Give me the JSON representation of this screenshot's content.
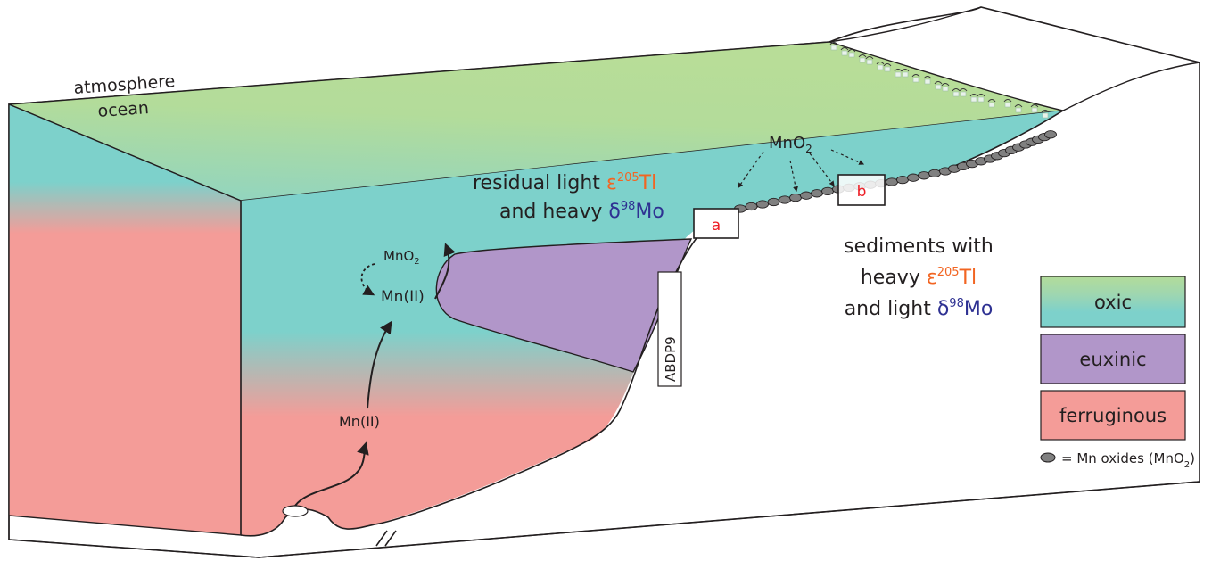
{
  "labels": {
    "atmosphere": "atmosphere",
    "ocean": "ocean",
    "mno2_top": "MnO",
    "mno2_sub": "2",
    "residual_line1_a": "residual light ",
    "residual_line1_sym": "ε",
    "residual_line1_sup": "205",
    "residual_line1_el": "Tl",
    "residual_line2_a": "and heavy ",
    "residual_line2_sym": "δ",
    "residual_line2_sup": "98",
    "residual_line2_el": "Mo",
    "sed_line1": "sediments with",
    "sed_line2_a": "heavy ",
    "sed_line2_sym": "ε",
    "sed_line2_sup": "205",
    "sed_line2_el": "Tl",
    "sed_line3_a": "and light ",
    "sed_line3_sym": "δ",
    "sed_line3_sup": "98",
    "sed_line3_el": "Mo",
    "site_a": "a",
    "site_b": "b",
    "core": "ABDP9",
    "cycle_mno2": "MnO",
    "cycle_mno2_sub": "2",
    "mn_upper": "Mn(II)",
    "mn_lower": "Mn(II)"
  },
  "legend": {
    "items": [
      {
        "label": "oxic",
        "color_top": "#b3dc9a",
        "color_bottom": "#7dd1cb"
      },
      {
        "label": "euxinic",
        "color": "#b196c9"
      },
      {
        "label": "ferruginous",
        "color": "#f49c98"
      }
    ],
    "mn_oxides_a": "= Mn oxides (MnO",
    "mn_oxides_sub": "2",
    "mn_oxides_b": ")"
  },
  "colors": {
    "tl_orange": "#f26522",
    "mo_blue": "#2e3192",
    "site_label_red": "#ed1c24",
    "oxic_green": "#b3dc9a",
    "oxic_teal": "#7dd1cb",
    "euxinic": "#b196c9",
    "ferruginous": "#f49c98",
    "outline": "#231f20",
    "nodule": "#808080"
  }
}
